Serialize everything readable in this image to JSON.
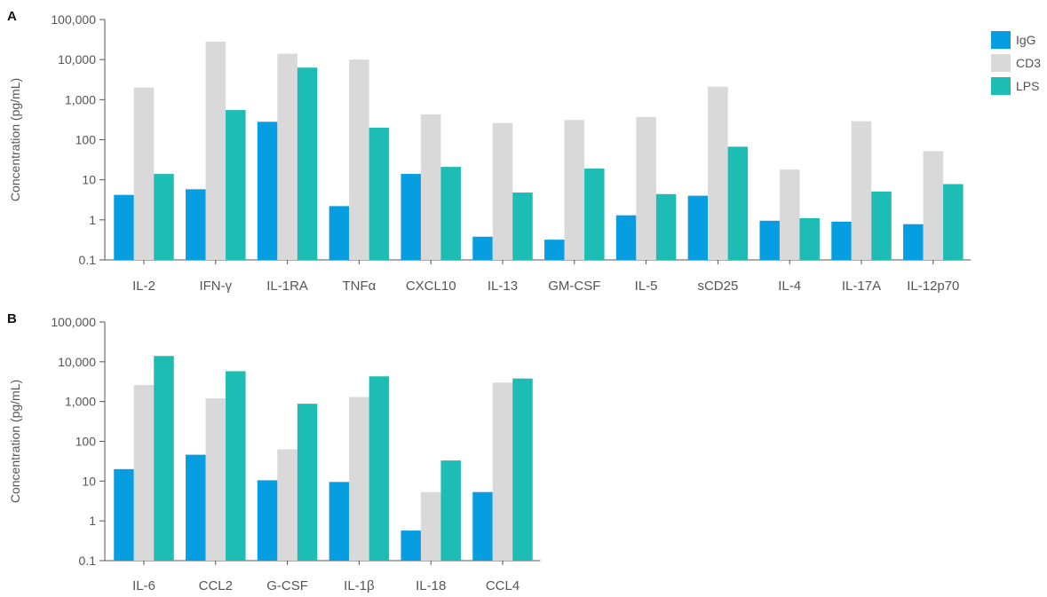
{
  "colors": {
    "IgG": "#069ee1",
    "CD3": "#d9d9d9",
    "LPS": "#1dbcb4",
    "axis": "#555555",
    "text": "#555555",
    "panel_label": "#111111"
  },
  "legend": {
    "placement": "top-right",
    "entries": [
      "IgG",
      "CD3",
      "LPS"
    ]
  },
  "chart_data": [
    {
      "type": "bar",
      "panel_label": "A",
      "ylabel": "Concentration (pg/mL)",
      "yscale": "log",
      "ylim": [
        0.1,
        100000
      ],
      "yticks": [
        "0.1",
        "1",
        "10",
        "100",
        "1,000",
        "10,000",
        "100,000"
      ],
      "grid": false,
      "legend": "top-right",
      "categories": [
        "IL-2",
        "IFN-γ",
        "IL-1RA",
        "TNFα",
        "CXCL10",
        "IL-13",
        "GM-CSF",
        "IL-5",
        "sCD25",
        "IL-4",
        "IL-17A",
        "IL-12p70"
      ],
      "series": [
        {
          "name": "IgG",
          "values": [
            4.2,
            5.8,
            280,
            2.2,
            14,
            0.38,
            0.32,
            1.3,
            4.0,
            0.95,
            0.9,
            0.78
          ]
        },
        {
          "name": "CD3",
          "values": [
            2000,
            28000,
            14000,
            10000,
            430,
            260,
            310,
            370,
            2100,
            18,
            290,
            52
          ]
        },
        {
          "name": "LPS",
          "values": [
            14,
            550,
            6300,
            200,
            21,
            4.8,
            19,
            4.4,
            67,
            1.1,
            5.1,
            7.8
          ]
        }
      ]
    },
    {
      "type": "bar",
      "panel_label": "B",
      "ylabel": "Concentration (pg/mL)",
      "yscale": "log",
      "ylim": [
        0.1,
        100000
      ],
      "yticks": [
        "0.1",
        "1",
        "10",
        "100",
        "1,000",
        "10,000",
        "100,000"
      ],
      "grid": false,
      "categories": [
        "IL-6",
        "CCL2",
        "G-CSF",
        "IL-1β",
        "IL-18",
        "CCL4"
      ],
      "series": [
        {
          "name": "IgG",
          "values": [
            20,
            46,
            10.5,
            9.5,
            0.57,
            5.3
          ]
        },
        {
          "name": "CD3",
          "values": [
            2600,
            1200,
            63,
            1300,
            5.3,
            3000
          ]
        },
        {
          "name": "LPS",
          "values": [
            14000,
            5800,
            880,
            4300,
            33,
            3800
          ]
        }
      ]
    }
  ]
}
